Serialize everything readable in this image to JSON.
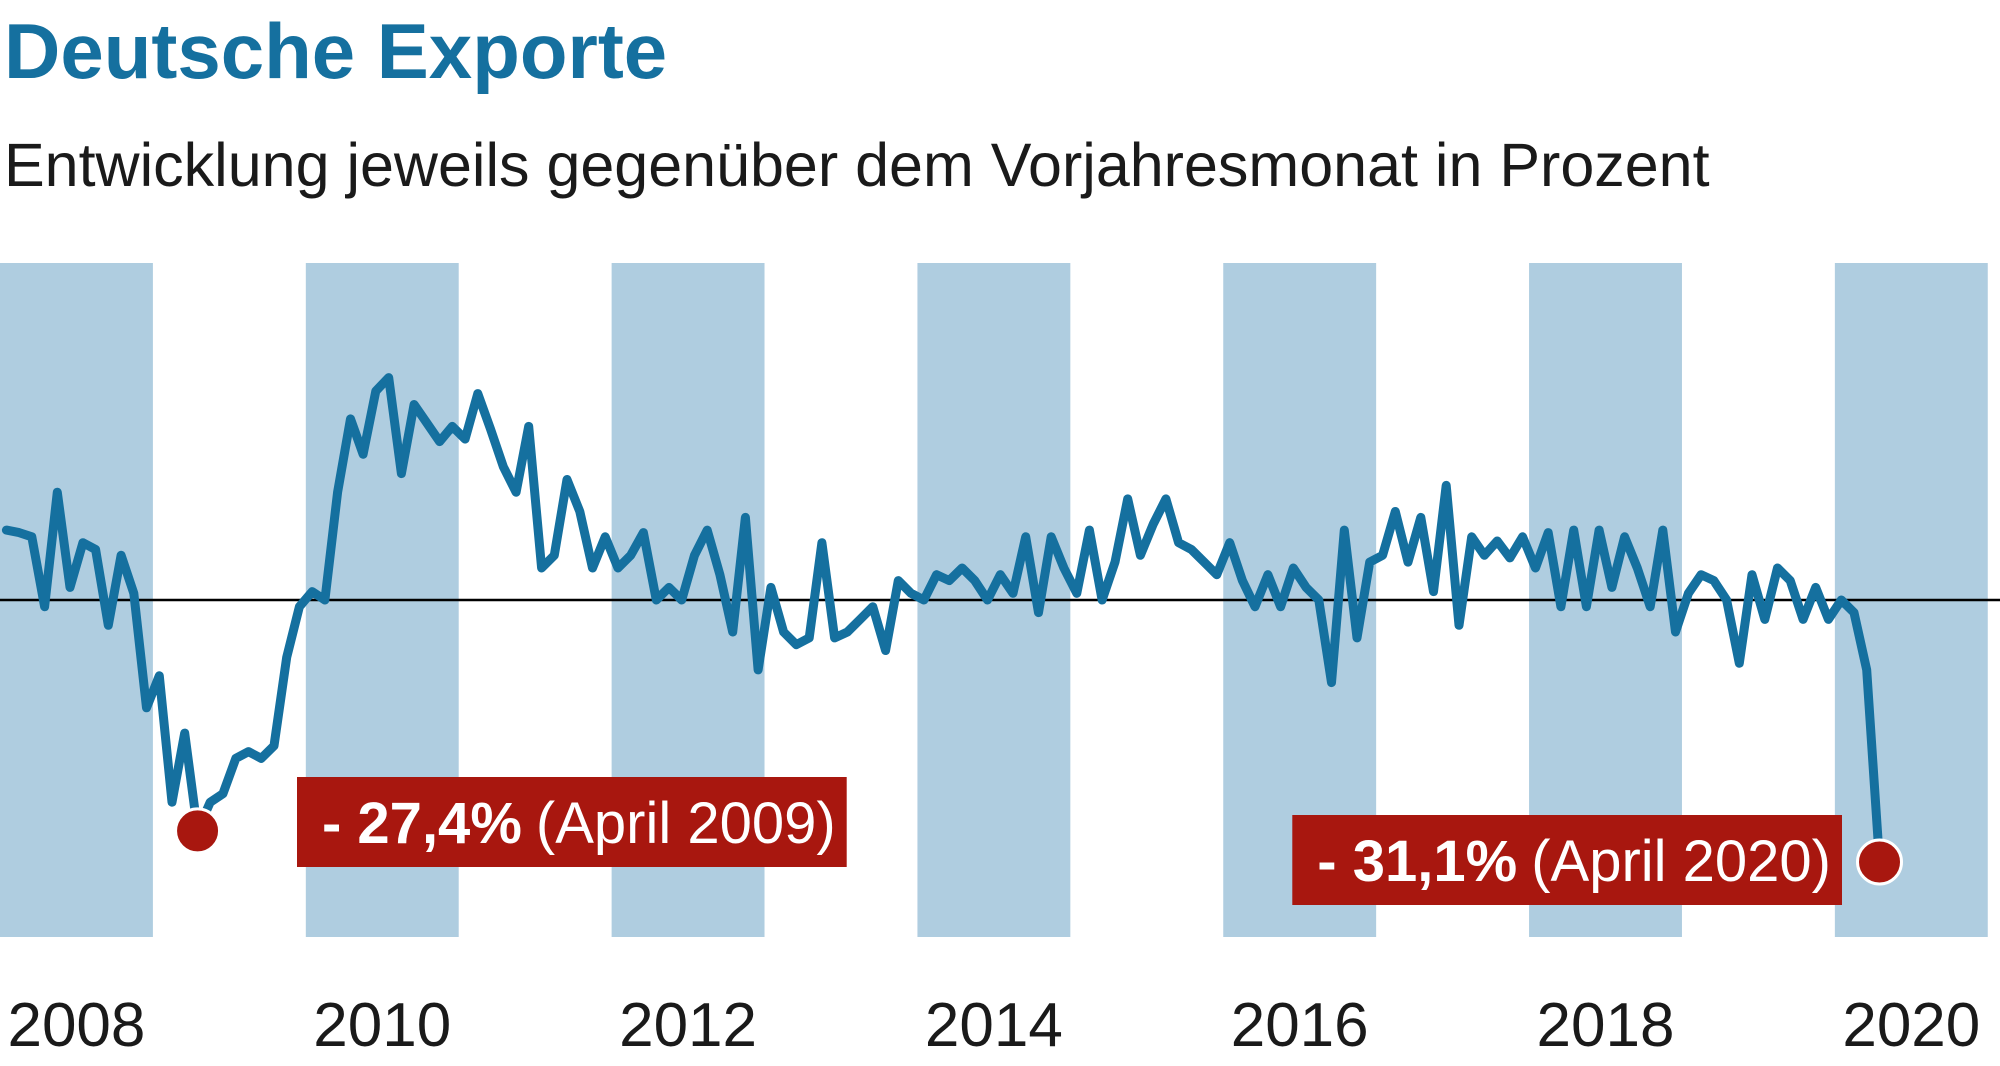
{
  "chart_data": {
    "type": "line",
    "title": "Deutsche Exporte",
    "subtitle": "Entwicklung jeweils gegenüber dem Vorjahresmonat in Prozent",
    "x": [
      2008.042,
      2008.125,
      2008.208,
      2008.292,
      2008.375,
      2008.458,
      2008.542,
      2008.625,
      2008.708,
      2008.792,
      2008.875,
      2008.958,
      2009.042,
      2009.125,
      2009.208,
      2009.292,
      2009.375,
      2009.458,
      2009.542,
      2009.625,
      2009.708,
      2009.792,
      2009.875,
      2009.958,
      2010.042,
      2010.125,
      2010.208,
      2010.292,
      2010.375,
      2010.458,
      2010.542,
      2010.625,
      2010.708,
      2010.792,
      2010.875,
      2010.958,
      2011.042,
      2011.125,
      2011.208,
      2011.292,
      2011.375,
      2011.458,
      2011.542,
      2011.625,
      2011.708,
      2011.792,
      2011.875,
      2011.958,
      2012.042,
      2012.125,
      2012.208,
      2012.292,
      2012.375,
      2012.458,
      2012.542,
      2012.625,
      2012.708,
      2012.792,
      2012.875,
      2012.958,
      2013.042,
      2013.125,
      2013.208,
      2013.292,
      2013.375,
      2013.458,
      2013.542,
      2013.625,
      2013.708,
      2013.792,
      2013.875,
      2013.958,
      2014.042,
      2014.125,
      2014.208,
      2014.292,
      2014.375,
      2014.458,
      2014.542,
      2014.625,
      2014.708,
      2014.792,
      2014.875,
      2014.958,
      2015.042,
      2015.125,
      2015.208,
      2015.292,
      2015.375,
      2015.458,
      2015.542,
      2015.625,
      2015.708,
      2015.792,
      2015.875,
      2015.958,
      2016.042,
      2016.125,
      2016.208,
      2016.292,
      2016.375,
      2016.458,
      2016.542,
      2016.625,
      2016.708,
      2016.792,
      2016.875,
      2016.958,
      2017.042,
      2017.125,
      2017.208,
      2017.292,
      2017.375,
      2017.458,
      2017.542,
      2017.625,
      2017.708,
      2017.792,
      2017.875,
      2017.958,
      2018.042,
      2018.125,
      2018.208,
      2018.292,
      2018.375,
      2018.458,
      2018.542,
      2018.625,
      2018.708,
      2018.792,
      2018.875,
      2018.958,
      2019.042,
      2019.125,
      2019.208,
      2019.292,
      2019.375,
      2019.458,
      2019.542,
      2019.625,
      2019.708,
      2019.792,
      2019.875,
      2019.958,
      2020.042,
      2020.125,
      2020.208,
      2020.292
    ],
    "series": [
      {
        "color": "#15709f",
        "values": [
          8.3,
          8,
          7.5,
          -0.8,
          12.8,
          1.5,
          6.8,
          6,
          -3,
          5.3,
          0.8,
          -12.8,
          -9,
          -24,
          -15.8,
          -27.4,
          -24,
          -23,
          -18.8,
          -18,
          -18.8,
          -17.3,
          -6.8,
          -0.8,
          1,
          0,
          12.8,
          21.5,
          17.3,
          24.8,
          26.4,
          15,
          23.2,
          21,
          18.8,
          20.6,
          19.1,
          24.5,
          20.3,
          15.8,
          12.8,
          20.6,
          3.8,
          5.3,
          14.3,
          10.5,
          3.8,
          7.5,
          3.8,
          5.3,
          8,
          0,
          1.5,
          0,
          5.3,
          8.3,
          3,
          -3.8,
          9.8,
          -8.3,
          1.5,
          -3.8,
          -5.3,
          -4.5,
          6.8,
          -4.5,
          -3.8,
          -2.3,
          -0.8,
          -6,
          2.3,
          0.8,
          0,
          3,
          2.3,
          3.8,
          2.3,
          0,
          3,
          0.8,
          7.5,
          -1.5,
          7.5,
          3.8,
          0.8,
          8.3,
          0,
          4.5,
          12,
          5.3,
          9,
          12,
          6.8,
          6,
          4.5,
          3,
          6.8,
          2.3,
          -0.8,
          3,
          -0.8,
          3.8,
          1.5,
          0,
          -9.8,
          8.3,
          -4.5,
          4.5,
          5.3,
          10.5,
          4.5,
          9.8,
          1,
          13.6,
          -3,
          7.5,
          5.3,
          7,
          5,
          7.5,
          3.8,
          8,
          -0.8,
          8.3,
          -0.8,
          8.3,
          1.5,
          7.5,
          3.8,
          -0.8,
          8.3,
          -3.8,
          0.8,
          3,
          2.3,
          0,
          -7.5,
          3,
          -2.3,
          3.8,
          2.3,
          -2.3,
          1.5,
          -2.3,
          0,
          -1.5,
          -8.3,
          -31.1
        ]
      }
    ],
    "xlim": [
      2008,
      2021.08
    ],
    "ylim": [
      -40,
      40
    ],
    "xticks": [
      {
        "value": 2008.5,
        "label": "2008"
      },
      {
        "value": 2009.5,
        "label": null
      },
      {
        "value": 2010.5,
        "label": "2010"
      },
      {
        "value": 2011.5,
        "label": null
      },
      {
        "value": 2012.5,
        "label": "2012"
      },
      {
        "value": 2013.5,
        "label": null
      },
      {
        "value": 2014.5,
        "label": "2014"
      },
      {
        "value": 2015.5,
        "label": null
      },
      {
        "value": 2016.5,
        "label": "2016"
      },
      {
        "value": 2017.5,
        "label": null
      },
      {
        "value": 2018.5,
        "label": "2018"
      },
      {
        "value": 2019.5,
        "label": null
      },
      {
        "value": 2020.5,
        "label": "2020"
      }
    ],
    "band_color": "#afcde0",
    "reference_line": 0,
    "annotations": [
      {
        "x": 2009.292,
        "value": -27.4,
        "label": "- 27,4%",
        "note": "(April 2009)",
        "color": "#a8170f"
      },
      {
        "x": 2020.292,
        "value": -31.1,
        "label": "- 31,1%",
        "note": "(April 2020)",
        "color": "#a8170f"
      }
    ]
  }
}
